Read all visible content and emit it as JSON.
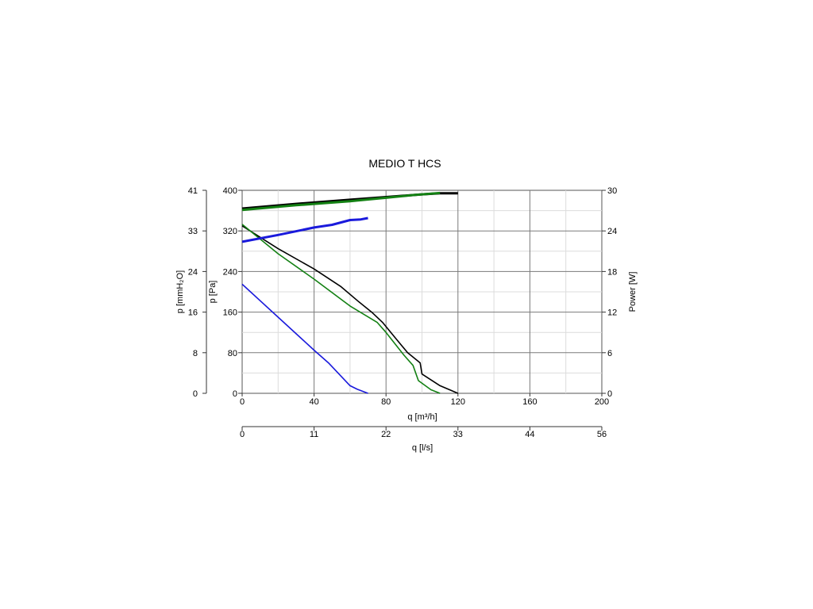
{
  "chart_data": {
    "type": "line",
    "title": "MEDIO T HCS",
    "x_axis": {
      "label": "q [m³/h]",
      "range": [
        0,
        200
      ],
      "ticks": [
        "0",
        "40",
        "80",
        "120",
        "160",
        "200"
      ]
    },
    "x2_axis": {
      "label": "q [l/s]",
      "range": [
        0,
        56
      ],
      "ticks": [
        "0",
        "11",
        "22",
        "33",
        "44",
        "56"
      ]
    },
    "y_axis": {
      "label": "p [Pa]",
      "range": [
        0,
        400
      ],
      "ticks": [
        "0",
        "80",
        "160",
        "240",
        "320",
        "400"
      ]
    },
    "y_axis_mmh2o": {
      "label": "p [mmH₂O]",
      "range": [
        0,
        41
      ],
      "ticks": [
        "0",
        "8",
        "16",
        "24",
        "33",
        "41"
      ]
    },
    "y2_axis": {
      "label": "Power [W]",
      "range": [
        0,
        30
      ],
      "ticks": [
        "0",
        "6",
        "12",
        "18",
        "24",
        "30"
      ]
    },
    "grid": true,
    "legend": "none",
    "series": [
      {
        "axis": "pressure",
        "color": "#000000",
        "width": 1.6,
        "x": [
          0,
          20,
          40,
          55,
          65,
          72,
          78,
          85,
          92,
          99,
          100,
          110,
          120
        ],
        "y": [
          330,
          285,
          245,
          210,
          180,
          160,
          140,
          110,
          80,
          60,
          38,
          15,
          0
        ]
      },
      {
        "axis": "pressure",
        "color": "#138013",
        "width": 1.6,
        "x": [
          0,
          20,
          40,
          60,
          75,
          80,
          90,
          95,
          98,
          105,
          110
        ],
        "y": [
          333,
          275,
          225,
          172,
          140,
          120,
          75,
          55,
          25,
          7,
          0
        ]
      },
      {
        "axis": "pressure",
        "color": "#1a1adc",
        "width": 1.6,
        "x": [
          0,
          20,
          40,
          48,
          60,
          64,
          70
        ],
        "y": [
          215,
          150,
          85,
          60,
          15,
          8,
          0
        ]
      },
      {
        "axis": "power",
        "color": "#000000",
        "width": 3,
        "x": [
          0,
          30,
          60,
          80,
          100,
          110,
          120
        ],
        "y": [
          27.3,
          28.0,
          28.6,
          29.0,
          29.4,
          29.55,
          29.55
        ]
      },
      {
        "axis": "power",
        "color": "#138013",
        "width": 3,
        "x": [
          0,
          30,
          60,
          80,
          95,
          110
        ],
        "y": [
          27.1,
          27.8,
          28.4,
          28.9,
          29.3,
          29.6
        ]
      },
      {
        "axis": "power",
        "color": "#1a1adc",
        "width": 3,
        "x": [
          0,
          20,
          40,
          50,
          60,
          66,
          70
        ],
        "y": [
          22.4,
          23.4,
          24.5,
          24.9,
          25.6,
          25.7,
          25.9
        ]
      }
    ]
  }
}
